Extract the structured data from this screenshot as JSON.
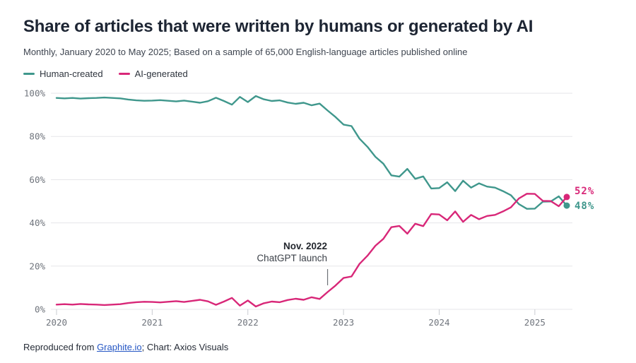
{
  "header": {
    "title": "Share of articles that were written by humans or generated by AI",
    "subtitle": "Monthly, January 2020 to May 2025; Based on a sample of 65,000 English-language articles published online"
  },
  "footer": {
    "prefix": "Reproduced from ",
    "link_text": "Graphite.io",
    "suffix": "; Chart: Axios Visuals"
  },
  "chart_data": {
    "type": "line",
    "title": "Share of articles that were written by humans or generated by AI",
    "x_range": {
      "start": "2020-01",
      "end": "2025-05",
      "interval": "monthly",
      "points": 65
    },
    "x_ticks": [
      {
        "label": "2020",
        "month_index": 0
      },
      {
        "label": "2021",
        "month_index": 12
      },
      {
        "label": "2022",
        "month_index": 24
      },
      {
        "label": "2023",
        "month_index": 36
      },
      {
        "label": "2024",
        "month_index": 48
      },
      {
        "label": "2025",
        "month_index": 60
      }
    ],
    "y_ticks": [
      0,
      20,
      40,
      60,
      80,
      100
    ],
    "y_tick_labels": [
      "0%",
      "20%",
      "40%",
      "60%",
      "80%",
      "100%"
    ],
    "ylim": [
      0,
      100
    ],
    "grid": "horizontal",
    "legend_position": "top-left",
    "series": [
      {
        "name": "Human-created",
        "color": "#3f978c",
        "values": [
          97.8,
          97.6,
          97.8,
          97.5,
          97.7,
          97.8,
          98.0,
          97.8,
          97.6,
          97.1,
          96.7,
          96.5,
          96.6,
          96.8,
          96.5,
          96.2,
          96.6,
          96.1,
          95.6,
          96.3,
          97.9,
          96.4,
          94.7,
          98.3,
          95.9,
          98.7,
          97.2,
          96.4,
          96.7,
          95.7,
          95.1,
          95.6,
          94.4,
          95.2,
          92.0,
          89.0,
          85.5,
          84.8,
          79.0,
          75.2,
          70.6,
          67.4,
          62.0,
          61.4,
          65.0,
          60.4,
          61.5,
          55.9,
          56.1,
          58.8,
          54.7,
          59.5,
          56.3,
          58.3,
          56.8,
          56.3,
          54.7,
          52.8,
          48.7,
          46.5,
          46.6,
          49.8,
          49.9,
          52.3,
          48.0
        ]
      },
      {
        "name": "AI-generated",
        "color": "#d82778",
        "values": [
          2.2,
          2.4,
          2.2,
          2.5,
          2.3,
          2.2,
          2.0,
          2.2,
          2.4,
          2.9,
          3.3,
          3.5,
          3.4,
          3.2,
          3.5,
          3.8,
          3.4,
          3.9,
          4.4,
          3.7,
          2.1,
          3.6,
          5.3,
          1.7,
          4.1,
          1.3,
          2.8,
          3.6,
          3.3,
          4.3,
          4.9,
          4.4,
          5.6,
          4.8,
          8.0,
          11.0,
          14.5,
          15.2,
          21.0,
          24.8,
          29.4,
          32.6,
          38.0,
          38.6,
          35.0,
          39.6,
          38.5,
          44.1,
          43.9,
          41.2,
          45.3,
          40.5,
          43.7,
          41.7,
          43.2,
          43.7,
          45.3,
          47.2,
          51.3,
          53.5,
          53.4,
          50.2,
          50.1,
          47.7,
          52.0
        ]
      }
    ],
    "annotation": {
      "line1": "Nov. 2022",
      "line2": "ChatGPT launch",
      "month_index": 34
    },
    "end_labels": {
      "ai": "52%",
      "human": "48%"
    }
  }
}
